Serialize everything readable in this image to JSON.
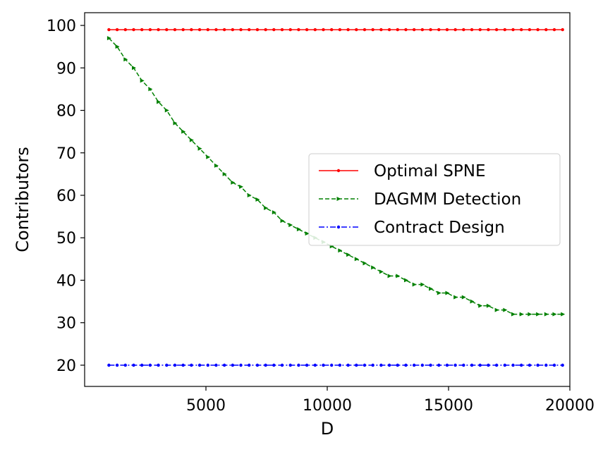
{
  "chart_data": {
    "type": "line",
    "title": "",
    "xlabel": "D",
    "ylabel": "Contributors",
    "xlim": [
      0,
      20000
    ],
    "ylim": [
      15,
      103
    ],
    "xticks": [
      5000,
      10000,
      15000,
      20000
    ],
    "yticks": [
      20,
      30,
      40,
      50,
      60,
      70,
      80,
      90,
      100
    ],
    "grid": false,
    "legend_position": "center-right",
    "x": [
      1000,
      1340,
      1680,
      2020,
      2360,
      2700,
      3040,
      3380,
      3720,
      4060,
      4400,
      4740,
      5080,
      5420,
      5760,
      6100,
      6440,
      6780,
      7120,
      7460,
      7800,
      8140,
      8480,
      8820,
      9160,
      9500,
      9840,
      10180,
      10520,
      10860,
      11200,
      11540,
      11880,
      12220,
      12560,
      12900,
      13240,
      13580,
      13920,
      14260,
      14600,
      14940,
      15280,
      15620,
      15960,
      16300,
      16640,
      16980,
      17320,
      17660,
      18000,
      18340,
      18680,
      19020,
      19360,
      19700
    ],
    "series": [
      {
        "name": "Optimal SPNE",
        "color": "#ff0000",
        "style": "solid",
        "values": [
          99,
          99,
          99,
          99,
          99,
          99,
          99,
          99,
          99,
          99,
          99,
          99,
          99,
          99,
          99,
          99,
          99,
          99,
          99,
          99,
          99,
          99,
          99,
          99,
          99,
          99,
          99,
          99,
          99,
          99,
          99,
          99,
          99,
          99,
          99,
          99,
          99,
          99,
          99,
          99,
          99,
          99,
          99,
          99,
          99,
          99,
          99,
          99,
          99,
          99,
          99,
          99,
          99,
          99,
          99,
          99
        ]
      },
      {
        "name": "DAGMM Detection",
        "color": "#008000",
        "style": "dashed",
        "values": [
          97,
          95,
          92,
          90,
          87,
          85,
          82,
          80,
          77,
          75,
          73,
          71,
          69,
          67,
          65,
          63,
          62,
          60,
          59,
          57,
          56,
          54,
          53,
          52,
          51,
          50,
          49,
          48,
          47,
          46,
          45,
          44,
          43,
          42,
          41,
          41,
          40,
          39,
          39,
          38,
          37,
          37,
          36,
          36,
          35,
          34,
          34,
          33,
          33,
          32,
          32,
          32,
          32,
          32,
          32,
          32
        ]
      },
      {
        "name": "Contract Design",
        "color": "#0000ff",
        "style": "dashdot",
        "values": [
          20,
          20,
          20,
          20,
          20,
          20,
          20,
          20,
          20,
          20,
          20,
          20,
          20,
          20,
          20,
          20,
          20,
          20,
          20,
          20,
          20,
          20,
          20,
          20,
          20,
          20,
          20,
          20,
          20,
          20,
          20,
          20,
          20,
          20,
          20,
          20,
          20,
          20,
          20,
          20,
          20,
          20,
          20,
          20,
          20,
          20,
          20,
          20,
          20,
          20,
          20,
          20,
          20,
          20,
          20,
          20
        ]
      }
    ]
  }
}
